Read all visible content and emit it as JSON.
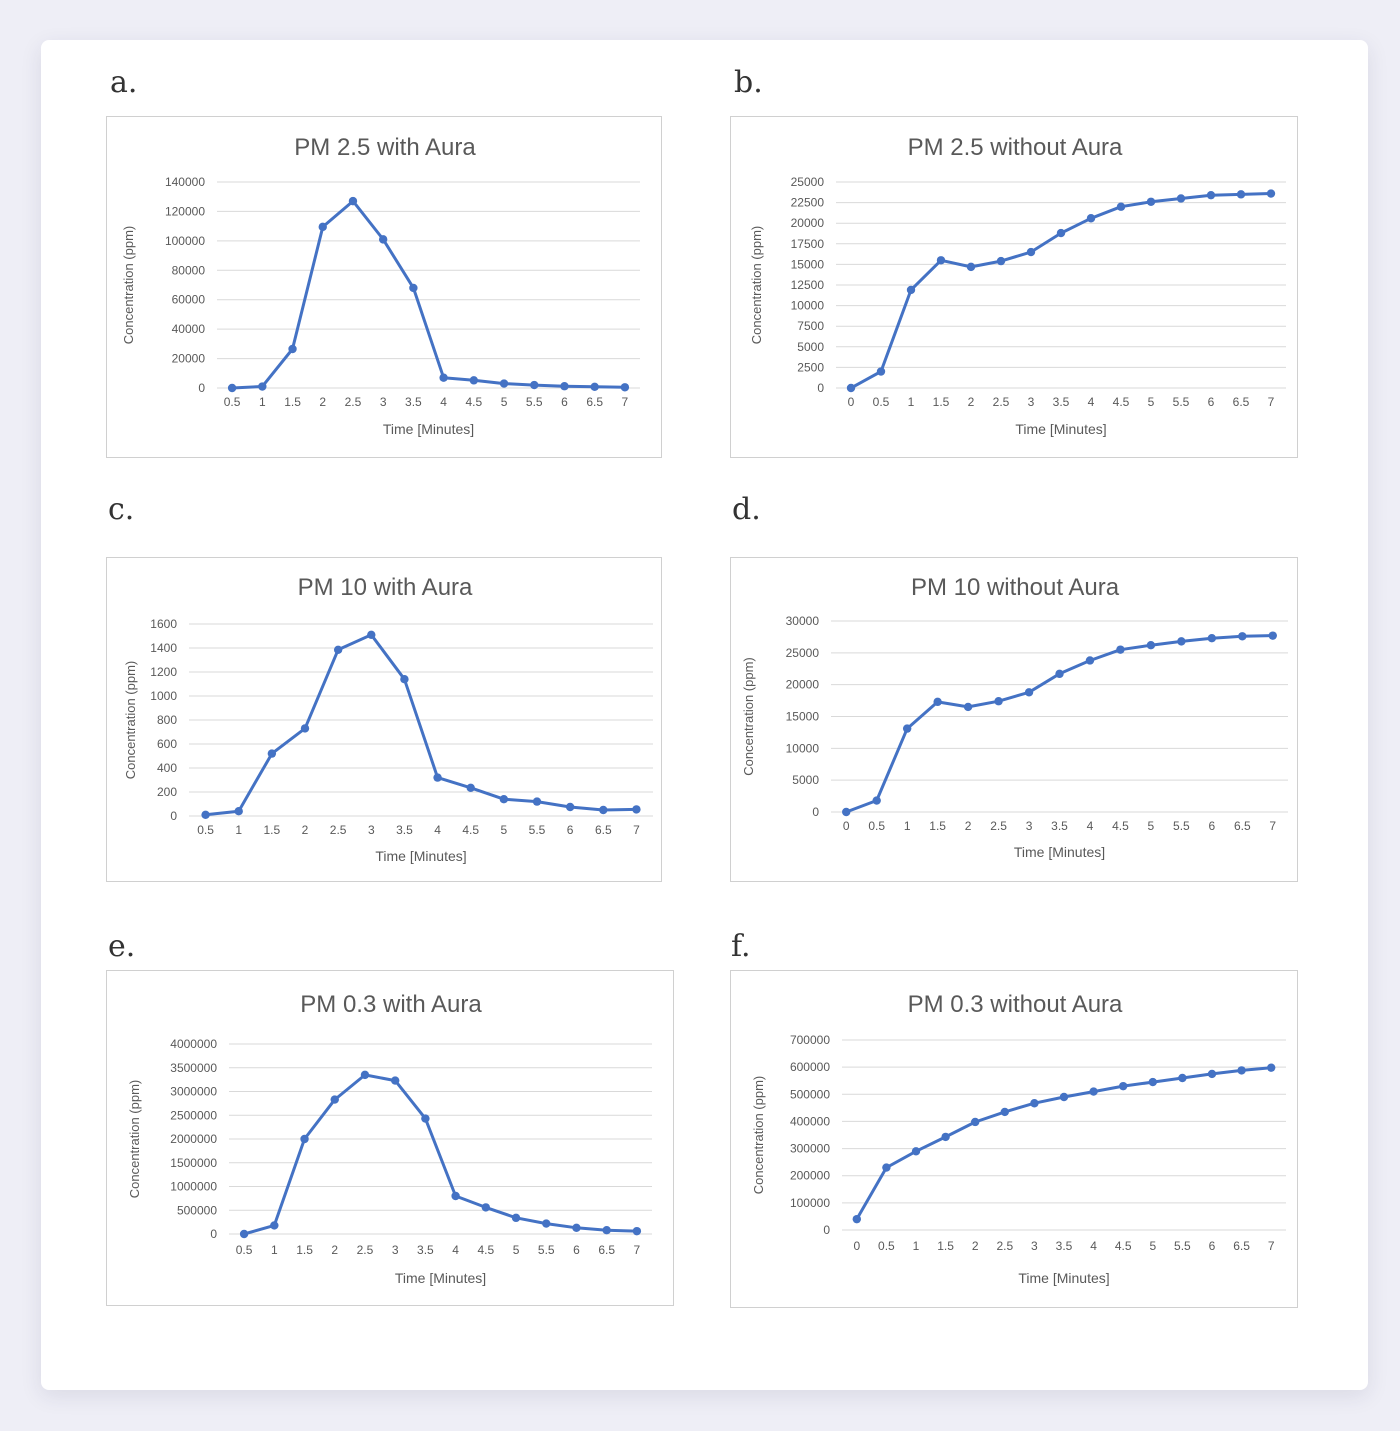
{
  "colors": {
    "series": "#4472c4",
    "grid": "#d9d9d9",
    "text": "#595959",
    "title": "#595959"
  },
  "chart_data": [
    {
      "panel": "a.",
      "type": "line",
      "title": "PM 2.5 with Aura",
      "xlabel": "Time [Minutes]",
      "ylabel": "Concentration (ppm)",
      "x": [
        "0.5",
        "1",
        "1.5",
        "2",
        "2.5",
        "3",
        "3.5",
        "4",
        "4.5",
        "5",
        "5.5",
        "6",
        "6.5",
        "7"
      ],
      "y": [
        0,
        1000,
        26500,
        109500,
        127000,
        101000,
        68000,
        7000,
        5200,
        3000,
        2000,
        1200,
        800,
        500
      ],
      "ylim": [
        0,
        140000
      ],
      "yticks": [
        "0",
        "20000",
        "40000",
        "60000",
        "80000",
        "100000",
        "120000",
        "140000"
      ],
      "grid": true,
      "legend": "none"
    },
    {
      "panel": "b.",
      "type": "line",
      "title": "PM 2.5 without Aura",
      "xlabel": "Time [Minutes]",
      "ylabel": "Concentration (ppm)",
      "x": [
        "0",
        "0.5",
        "1",
        "1.5",
        "2",
        "2.5",
        "3",
        "3.5",
        "4",
        "4.5",
        "5",
        "5.5",
        "6",
        "6.5",
        "7"
      ],
      "y": [
        0,
        2000,
        11900,
        15500,
        14700,
        15400,
        16500,
        18800,
        20600,
        22000,
        22600,
        23000,
        23400,
        23500,
        23600
      ],
      "ylim": [
        0,
        25000
      ],
      "yticks": [
        "0",
        "2500",
        "5000",
        "7500",
        "10000",
        "12500",
        "15000",
        "17500",
        "20000",
        "22500",
        "25000"
      ],
      "grid": true,
      "legend": "none"
    },
    {
      "panel": "c.",
      "type": "line",
      "title": "PM 10 with Aura",
      "xlabel": "Time [Minutes]",
      "ylabel": "Concentration (ppm)",
      "x": [
        "0.5",
        "1",
        "1.5",
        "2",
        "2.5",
        "3",
        "3.5",
        "4",
        "4.5",
        "5",
        "5.5",
        "6",
        "6.5",
        "7"
      ],
      "y": [
        10,
        40,
        520,
        730,
        1385,
        1510,
        1140,
        320,
        235,
        140,
        120,
        75,
        50,
        55
      ],
      "ylim": [
        0,
        1600
      ],
      "yticks": [
        "0",
        "200",
        "400",
        "600",
        "800",
        "1000",
        "1200",
        "1400",
        "1600"
      ],
      "grid": true,
      "legend": "none"
    },
    {
      "panel": "d.",
      "type": "line",
      "title": "PM 10 without Aura",
      "xlabel": "Time [Minutes]",
      "ylabel": "Concentration (ppm)",
      "x": [
        "0",
        "0.5",
        "1",
        "1.5",
        "2",
        "2.5",
        "3",
        "3.5",
        "4",
        "4.5",
        "5",
        "5.5",
        "6",
        "6.5",
        "7"
      ],
      "y": [
        0,
        1800,
        13100,
        17300,
        16500,
        17400,
        18800,
        21700,
        23800,
        25500,
        26200,
        26800,
        27300,
        27600,
        27700
      ],
      "ylim": [
        0,
        30000
      ],
      "yticks": [
        "0",
        "5000",
        "10000",
        "15000",
        "20000",
        "25000",
        "30000"
      ],
      "grid": true,
      "legend": "none"
    },
    {
      "panel": "e.",
      "type": "line",
      "title": "PM 0.3 with Aura",
      "xlabel": "Time [Minutes]",
      "ylabel": "Concentration (ppm)",
      "x": [
        "0.5",
        "1",
        "1.5",
        "2",
        "2.5",
        "3",
        "3.5",
        "4",
        "4.5",
        "5",
        "5.5",
        "6",
        "6.5",
        "7"
      ],
      "y": [
        0,
        180000,
        2000000,
        2830000,
        3350000,
        3230000,
        2430000,
        800000,
        560000,
        340000,
        220000,
        130000,
        80000,
        60000
      ],
      "ylim": [
        0,
        4000000
      ],
      "yticks": [
        "0",
        "500000",
        "1000000",
        "1500000",
        "2000000",
        "2500000",
        "3000000",
        "3500000",
        "4000000"
      ],
      "grid": true,
      "legend": "none"
    },
    {
      "panel": "f.",
      "type": "line",
      "title": "PM 0.3 without Aura",
      "xlabel": "Time [Minutes]",
      "ylabel": "Concentration (ppm)",
      "x": [
        "0",
        "0.5",
        "1",
        "1.5",
        "2",
        "2.5",
        "3",
        "3.5",
        "4",
        "4.5",
        "5",
        "5.5",
        "6",
        "6.5",
        "7"
      ],
      "y": [
        40000,
        230000,
        290000,
        343000,
        398000,
        435000,
        467000,
        490000,
        510000,
        530000,
        545000,
        560000,
        575000,
        588000,
        598000
      ],
      "ylim": [
        0,
        700000
      ],
      "yticks": [
        "0",
        "100000",
        "200000",
        "300000",
        "400000",
        "500000",
        "600000",
        "700000"
      ],
      "grid": true,
      "legend": "none"
    }
  ]
}
